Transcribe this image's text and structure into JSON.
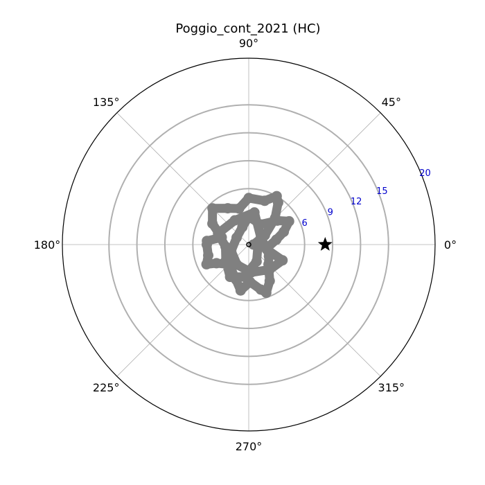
{
  "chart_data": {
    "type": "polar-trajectory",
    "title": "Poggio_cont_2021 (HC)",
    "angle_unit": "degrees",
    "angular_tick_labels": [
      "0°",
      "45°",
      "90°",
      "135°",
      "180°",
      "225°",
      "270°",
      "315°"
    ],
    "angular_ticks": [
      0,
      45,
      90,
      135,
      180,
      225,
      270,
      315
    ],
    "radial_ticks": [
      6,
      9,
      12,
      15,
      20
    ],
    "radial_tick_labels": [
      "6",
      "9",
      "12",
      "15",
      "20"
    ],
    "radial_label_angle": 22.5,
    "rlim": [
      0,
      20
    ],
    "grid": true,
    "colors": {
      "trajectory": "#808080",
      "target_marker": "#000000",
      "grid_line": "#b0b0b0",
      "radial_label": "#0000cc",
      "frame": "#000000"
    },
    "series": [
      {
        "marker": "circle",
        "color": "#808080",
        "points": [
          {
            "theta": 0,
            "r": 0.5
          },
          {
            "theta": 30,
            "r": 2.0
          },
          {
            "theta": 45,
            "r": 4.0
          },
          {
            "theta": 55,
            "r": 5.5
          },
          {
            "theta": 60,
            "r": 6.0
          },
          {
            "theta": 70,
            "r": 5.0
          },
          {
            "theta": 90,
            "r": 5.0
          },
          {
            "theta": 105,
            "r": 4.0
          },
          {
            "theta": 120,
            "r": 4.5
          },
          {
            "theta": 135,
            "r": 5.5
          },
          {
            "theta": 150,
            "r": 4.5
          },
          {
            "theta": 165,
            "r": 3.0
          },
          {
            "theta": 175,
            "r": 4.5
          },
          {
            "theta": 180,
            "r": 4.5
          },
          {
            "theta": 195,
            "r": 4.5
          },
          {
            "theta": 205,
            "r": 5.0
          },
          {
            "theta": 210,
            "r": 4.0
          },
          {
            "theta": 225,
            "r": 3.0
          },
          {
            "theta": 250,
            "r": 4.0
          },
          {
            "theta": 260,
            "r": 5.0
          },
          {
            "theta": 272,
            "r": 4.0
          },
          {
            "theta": 285,
            "r": 5.0
          },
          {
            "theta": 290,
            "r": 5.5
          },
          {
            "theta": 300,
            "r": 4.5
          },
          {
            "theta": 315,
            "r": 3.0
          },
          {
            "theta": 330,
            "r": 2.5
          },
          {
            "theta": 350,
            "r": 2.0
          },
          {
            "theta": 10,
            "r": 3.0
          },
          {
            "theta": 20,
            "r": 4.0
          },
          {
            "theta": 30,
            "r": 5.0
          },
          {
            "theta": 40,
            "r": 4.0
          },
          {
            "theta": 60,
            "r": 2.5
          },
          {
            "theta": 90,
            "r": 3.0
          },
          {
            "theta": 110,
            "r": 2.0
          },
          {
            "theta": 150,
            "r": 1.5
          },
          {
            "theta": 200,
            "r": 2.0
          },
          {
            "theta": 240,
            "r": 2.5
          },
          {
            "theta": 275,
            "r": 3.0
          },
          {
            "theta": 310,
            "r": 3.5
          },
          {
            "theta": 335,
            "r": 4.0
          },
          {
            "theta": 345,
            "r": 2.0
          },
          {
            "theta": 30,
            "r": 1.5
          },
          {
            "theta": 80,
            "r": 3.5
          },
          {
            "theta": 120,
            "r": 3.0
          },
          {
            "theta": 160,
            "r": 3.5
          },
          {
            "theta": 185,
            "r": 2.5
          },
          {
            "theta": 215,
            "r": 3.0
          },
          {
            "theta": 240,
            "r": 4.0
          },
          {
            "theta": 262,
            "r": 3.5
          },
          {
            "theta": 295,
            "r": 2.0
          },
          {
            "theta": 0,
            "r": 1.0
          }
        ]
      },
      {
        "marker": "star",
        "color": "#000000",
        "points": [
          {
            "theta": 0,
            "r": 8.2
          }
        ]
      }
    ]
  }
}
